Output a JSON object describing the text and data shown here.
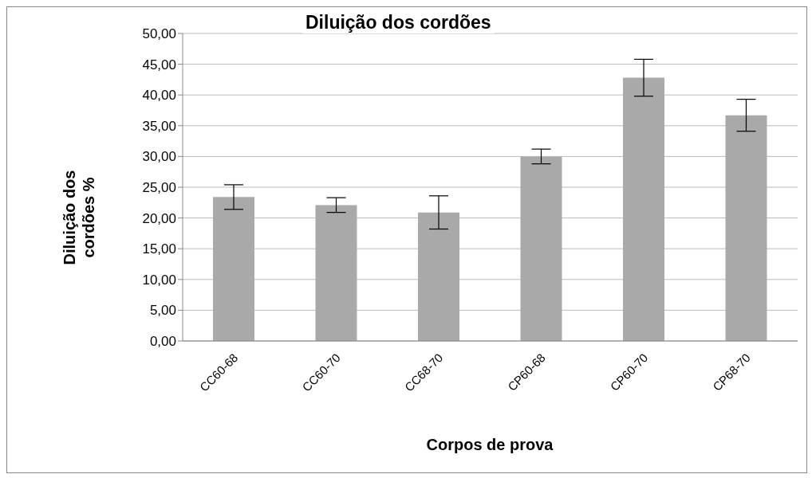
{
  "chart_data": {
    "type": "bar",
    "title": "Diluição dos cordões",
    "xlabel": "Corpos de prova",
    "ylabel": "Diluição dos cordões %",
    "categories": [
      "CC60-68",
      "CC60-70",
      "CC68-70",
      "CP60-68",
      "CP60-70",
      "CP68-70"
    ],
    "values": [
      23.4,
      22.1,
      20.9,
      30.0,
      42.8,
      36.7
    ],
    "errors": [
      2.0,
      1.2,
      2.7,
      1.2,
      3.0,
      2.6
    ],
    "color": "#a9a9a9",
    "ylim": [
      0,
      50
    ],
    "yticks": [
      {
        "value": 0,
        "label": "0,00"
      },
      {
        "value": 5,
        "label": "5,00"
      },
      {
        "value": 10,
        "label": "10,00"
      },
      {
        "value": 15,
        "label": "15,00"
      },
      {
        "value": 20,
        "label": "20,00"
      },
      {
        "value": 25,
        "label": "25,00"
      },
      {
        "value": 30,
        "label": "30,00"
      },
      {
        "value": 35,
        "label": "35,00"
      },
      {
        "value": 40,
        "label": "40,00"
      },
      {
        "value": 45,
        "label": "45,00"
      },
      {
        "value": 50,
        "label": "50,00"
      }
    ],
    "grid": "y",
    "legend": false
  }
}
